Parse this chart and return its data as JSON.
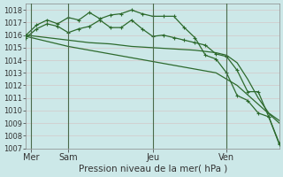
{
  "bg_color": "#cce8e8",
  "grid_color": "#b8d8d8",
  "line_color": "#2d6a2d",
  "marker_color": "#2d6a2d",
  "title": "Pression niveau de la mer( hPa )",
  "title_fontsize": 7.5,
  "ylabel_fontsize": 6,
  "xlabel_fontsize": 7,
  "ylim": [
    1007,
    1018.5
  ],
  "xlim": [
    0,
    24
  ],
  "yticks": [
    1007,
    1008,
    1009,
    1010,
    1011,
    1012,
    1013,
    1014,
    1015,
    1016,
    1017,
    1018
  ],
  "day_labels": [
    "Mer",
    "Sam",
    "Jeu",
    "Ven"
  ],
  "day_positions": [
    0.5,
    4,
    12,
    19
  ],
  "vline_positions": [
    0.5,
    4,
    12,
    19
  ],
  "series": [
    {
      "x": [
        0,
        2,
        4,
        6,
        8,
        10,
        12,
        14,
        16,
        18,
        20,
        22,
        24
      ],
      "y": [
        1015.9,
        1015.5,
        1015.1,
        1014.8,
        1014.5,
        1014.2,
        1013.9,
        1013.6,
        1013.3,
        1013.0,
        1012.0,
        1010.5,
        1009.0
      ],
      "has_markers": false,
      "lw": 0.9
    },
    {
      "x": [
        0,
        2,
        4,
        6,
        8,
        10,
        12,
        14,
        16,
        18,
        19,
        20,
        21,
        22,
        23,
        24
      ],
      "y": [
        1016.0,
        1015.8,
        1015.6,
        1015.4,
        1015.3,
        1015.1,
        1015.0,
        1014.9,
        1014.8,
        1014.6,
        1014.4,
        1013.8,
        1012.5,
        1011.0,
        1009.8,
        1009.2
      ],
      "has_markers": false,
      "lw": 0.9
    },
    {
      "x": [
        0,
        1,
        2,
        3,
        4,
        5,
        6,
        7,
        8,
        9,
        10,
        11,
        12,
        13,
        14,
        15,
        16,
        17,
        18,
        19,
        20,
        21,
        22,
        23,
        24
      ],
      "y": [
        1015.8,
        1016.5,
        1016.9,
        1016.7,
        1016.2,
        1016.5,
        1016.7,
        1017.2,
        1016.6,
        1016.6,
        1017.2,
        1016.5,
        1015.9,
        1016.0,
        1015.8,
        1015.6,
        1015.4,
        1015.2,
        1014.5,
        1014.3,
        1013.2,
        1011.5,
        1011.5,
        1009.5,
        1007.3
      ],
      "has_markers": true,
      "lw": 0.9
    },
    {
      "x": [
        0,
        1,
        2,
        3,
        4,
        5,
        6,
        7,
        8,
        9,
        10,
        11,
        12,
        13,
        14,
        15,
        16,
        17,
        18,
        19,
        20,
        21,
        22,
        23,
        24
      ],
      "y": [
        1016.0,
        1016.8,
        1017.2,
        1016.9,
        1017.4,
        1017.2,
        1017.8,
        1017.3,
        1017.6,
        1017.7,
        1018.0,
        1017.7,
        1017.5,
        1017.5,
        1017.5,
        1016.6,
        1015.8,
        1014.4,
        1014.1,
        1013.0,
        1011.2,
        1010.8,
        1009.8,
        1009.5,
        1007.4
      ],
      "has_markers": true,
      "lw": 0.9
    }
  ]
}
